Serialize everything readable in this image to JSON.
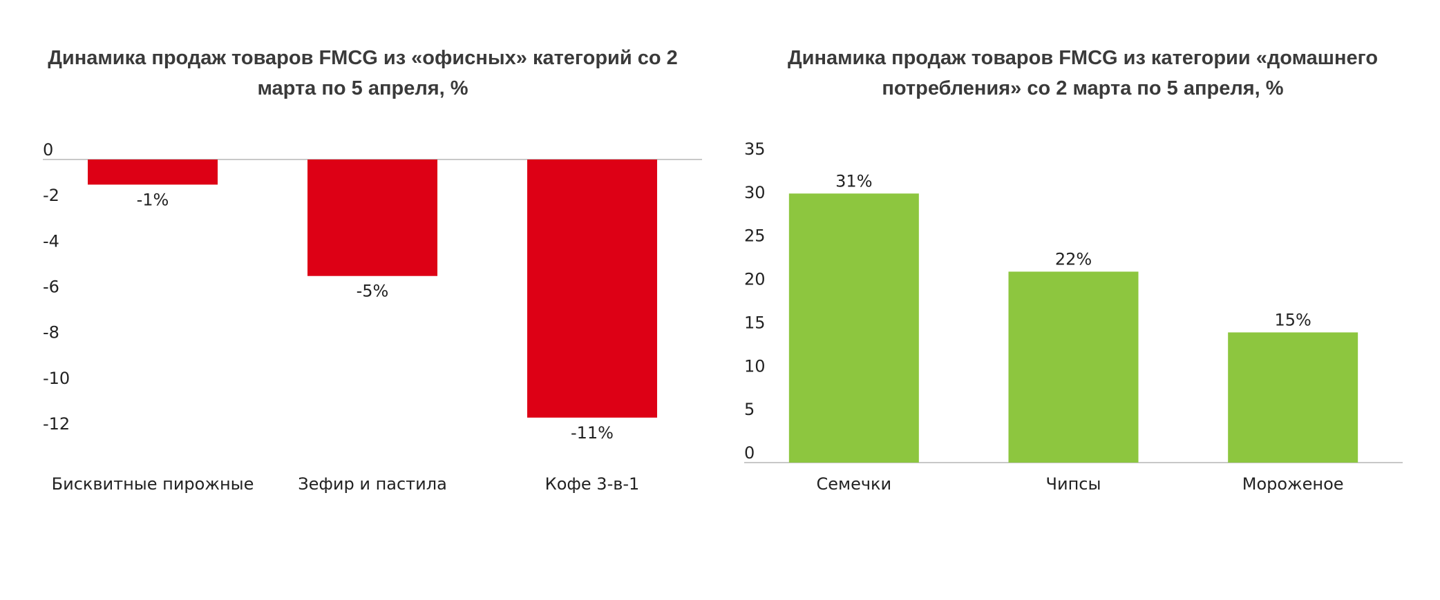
{
  "charts": {
    "left": {
      "title": "Динамика продаж товаров FMCG из «офисных» категорий со 2 марта по 5 апреля, %"
    },
    "right": {
      "title": "Динамика продаж товаров FMCG из категории «домашнего потребления» со 2 марта по 5 апреля, %"
    }
  },
  "chart_data": [
    {
      "type": "bar",
      "title": "Динамика продаж товаров FMCG из «офисных» категорий со 2 марта по 5 апреля, %",
      "categories": [
        "Бисквитные пирожные",
        "Зефир и пастила",
        "Кофе 3-в-1"
      ],
      "values": [
        -1.1,
        -5.1,
        -11.3
      ],
      "data_labels": [
        "-1%",
        "-5%",
        "-11%"
      ],
      "ylim": [
        -12,
        0
      ],
      "yticks": [
        0,
        -2,
        -4,
        -6,
        -8,
        -10,
        -12
      ],
      "xlabel": "",
      "ylabel": "",
      "bar_color": "#dd0015",
      "grid": false,
      "legend": "none"
    },
    {
      "type": "bar",
      "title": "Динамика продаж товаров FMCG из категории «домашнего потребления» со 2 марта по 5 апреля, %",
      "categories": [
        "Семечки",
        "Чипсы",
        "Мороженое"
      ],
      "values": [
        31,
        22,
        15
      ],
      "data_labels": [
        "31%",
        "22%",
        "15%"
      ],
      "ylim": [
        0,
        35
      ],
      "yticks": [
        0,
        5,
        10,
        15,
        20,
        25,
        30,
        35
      ],
      "xlabel": "",
      "ylabel": "",
      "bar_color": "#8dc63f",
      "grid": false,
      "legend": "none"
    }
  ]
}
